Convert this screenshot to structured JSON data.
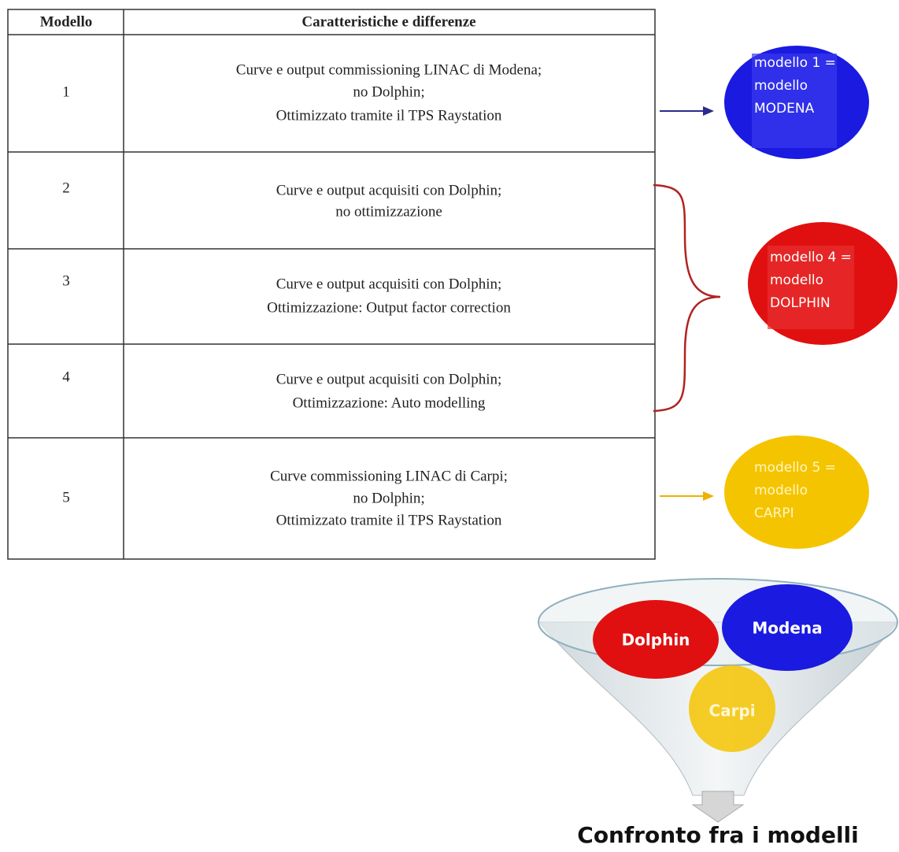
{
  "table": {
    "headers": [
      "Modello",
      "Caratteristiche  e differenze"
    ],
    "rows": [
      {
        "model": "1",
        "lines": [
          "Curve e output commissioning  LINAC di Modena;",
          "no Dolphin;",
          "Ottimizzato tramite il TPS Raystation"
        ]
      },
      {
        "model": "2",
        "lines": [
          "Curve e output acquisiti con Dolphin;",
          "no ottimizzazione"
        ]
      },
      {
        "model": "3",
        "lines": [
          "Curve e output acquisiti con Dolphin;",
          "Ottimizzazione:  Output factor correction"
        ]
      },
      {
        "model": "4",
        "lines": [
          "Curve e output acquisiti con Dolphin;",
          "Ottimizzazione:  Auto modelling"
        ]
      },
      {
        "model": "5",
        "lines": [
          "Curve commissioning LINAC di Carpi;",
          "no Dolphin;",
          "Ottimizzato tramite il TPS Raystation"
        ]
      }
    ]
  },
  "groups": [
    {
      "lines": [
        "modello 1 =",
        "modello",
        "MODENA"
      ]
    },
    {
      "lines": [
        "modello 4 =",
        "modello",
        "DOLPHIN"
      ]
    },
    {
      "lines": [
        "modello 5 =",
        "modello",
        "CARPI"
      ]
    }
  ],
  "funnel": {
    "items": [
      "Dolphin",
      "Modena",
      "Carpi"
    ],
    "caption": "Confronto fra i modelli"
  }
}
